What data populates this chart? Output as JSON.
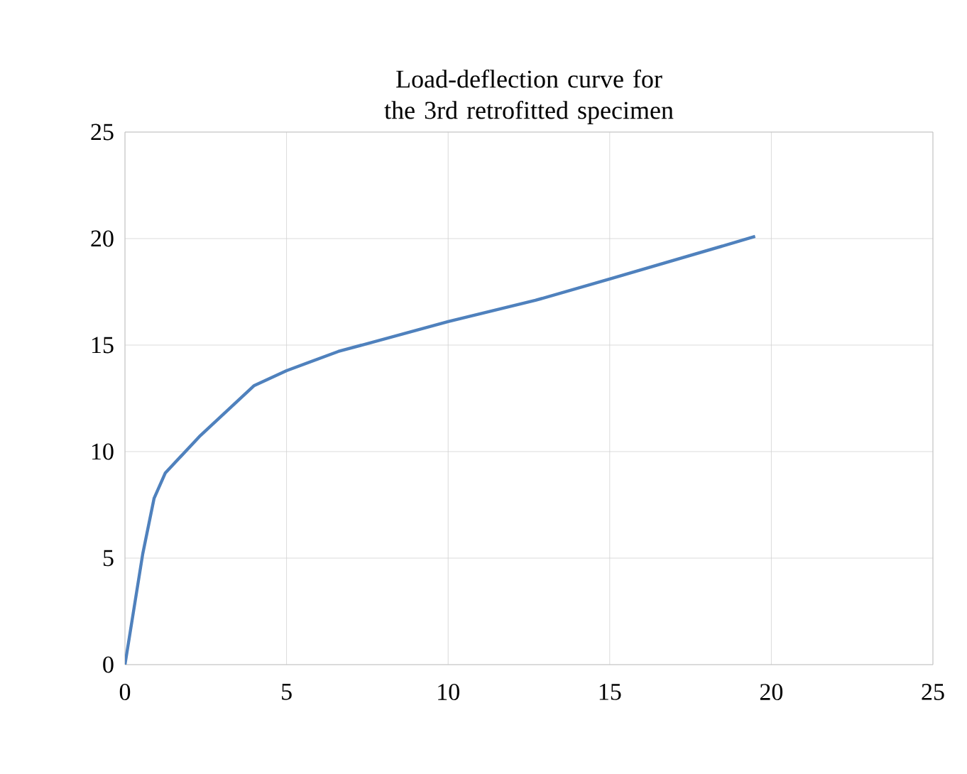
{
  "chart_data": {
    "type": "line",
    "title": "Load-deflection curve for the 3rd retrofitted specimen",
    "x": [
      0,
      0.55,
      0.9,
      1.25,
      2.3,
      4.0,
      5.0,
      6.6,
      10,
      12.7,
      15,
      19.5
    ],
    "series": [
      {
        "color": "#4f81bd",
        "values": [
          0,
          5.2,
          7.8,
          9.0,
          10.7,
          13.1,
          13.8,
          14.7,
          16.1,
          17.1,
          18.1,
          20.1
        ]
      }
    ],
    "xlim": [
      0,
      25
    ],
    "xticks": [
      0,
      5,
      10,
      15,
      20,
      25
    ],
    "ylim": [
      0,
      25
    ],
    "yticks": [
      0,
      5,
      10,
      15,
      20,
      25
    ],
    "grid": true
  }
}
